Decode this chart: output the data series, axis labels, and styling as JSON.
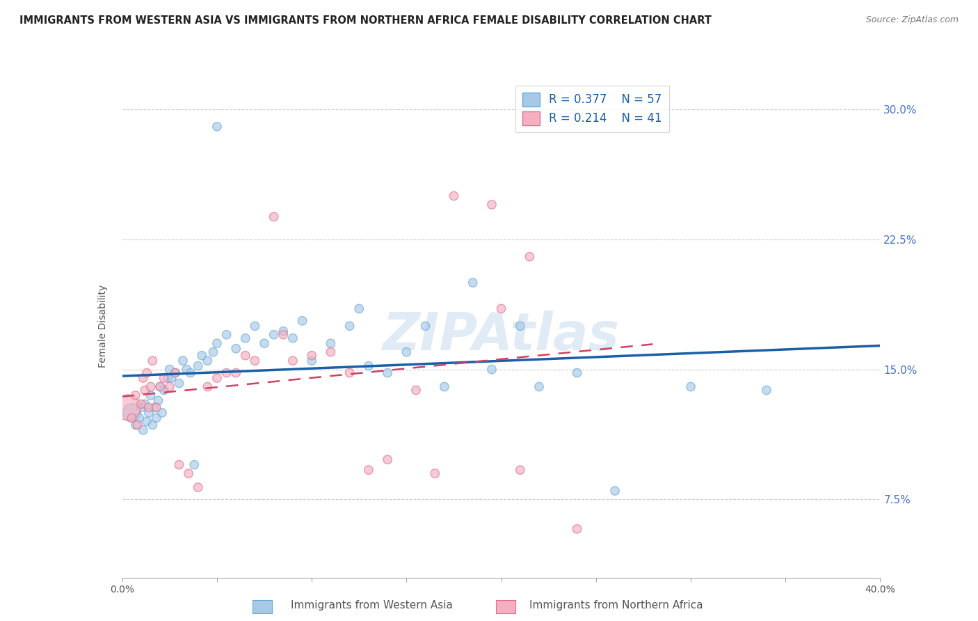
{
  "title": "IMMIGRANTS FROM WESTERN ASIA VS IMMIGRANTS FROM NORTHERN AFRICA FEMALE DISABILITY CORRELATION CHART",
  "source": "Source: ZipAtlas.com",
  "ylabel": "Female Disability",
  "watermark": "ZIPAtlas",
  "blue_R": 0.377,
  "blue_N": 57,
  "pink_R": 0.214,
  "pink_N": 41,
  "xlim": [
    0,
    0.4
  ],
  "ylim": [
    0.03,
    0.32
  ],
  "yticks": [
    0.075,
    0.15,
    0.225,
    0.3
  ],
  "ytick_labels": [
    "7.5%",
    "15.0%",
    "22.5%",
    "30.0%"
  ],
  "blue_color": "#a8c8e8",
  "blue_edge_color": "#6aaad4",
  "blue_line_color": "#1a5fa8",
  "pink_color": "#f4b0c0",
  "pink_edge_color": "#e07090",
  "pink_line_color": "#d04060",
  "blue_scatter_x": [
    0.005,
    0.007,
    0.009,
    0.01,
    0.011,
    0.012,
    0.013,
    0.014,
    0.015,
    0.016,
    0.017,
    0.018,
    0.019,
    0.02,
    0.021,
    0.022,
    0.024,
    0.025,
    0.026,
    0.028,
    0.03,
    0.032,
    0.034,
    0.036,
    0.038,
    0.04,
    0.042,
    0.045,
    0.048,
    0.05,
    0.055,
    0.06,
    0.065,
    0.07,
    0.075,
    0.08,
    0.085,
    0.09,
    0.095,
    0.1,
    0.11,
    0.12,
    0.13,
    0.14,
    0.15,
    0.16,
    0.17,
    0.185,
    0.195,
    0.21,
    0.22,
    0.24,
    0.26,
    0.3,
    0.34,
    0.125,
    0.05
  ],
  "blue_scatter_y": [
    0.125,
    0.118,
    0.122,
    0.128,
    0.115,
    0.13,
    0.12,
    0.125,
    0.135,
    0.118,
    0.128,
    0.122,
    0.132,
    0.14,
    0.125,
    0.138,
    0.145,
    0.15,
    0.145,
    0.148,
    0.142,
    0.155,
    0.15,
    0.148,
    0.095,
    0.152,
    0.158,
    0.155,
    0.16,
    0.165,
    0.17,
    0.162,
    0.168,
    0.175,
    0.165,
    0.17,
    0.172,
    0.168,
    0.178,
    0.155,
    0.165,
    0.175,
    0.152,
    0.148,
    0.16,
    0.175,
    0.14,
    0.2,
    0.15,
    0.175,
    0.14,
    0.148,
    0.08,
    0.14,
    0.138,
    0.185,
    0.29
  ],
  "blue_scatter_size": [
    350,
    80,
    80,
    80,
    80,
    80,
    80,
    80,
    80,
    80,
    80,
    80,
    80,
    80,
    80,
    80,
    80,
    80,
    80,
    80,
    80,
    80,
    80,
    80,
    80,
    80,
    80,
    80,
    80,
    80,
    80,
    80,
    80,
    80,
    80,
    80,
    80,
    80,
    80,
    80,
    80,
    80,
    80,
    80,
    80,
    80,
    80,
    80,
    80,
    80,
    80,
    80,
    80,
    80,
    80,
    80,
    80
  ],
  "pink_scatter_x": [
    0.003,
    0.005,
    0.007,
    0.008,
    0.01,
    0.011,
    0.012,
    0.013,
    0.014,
    0.015,
    0.016,
    0.018,
    0.02,
    0.022,
    0.025,
    0.028,
    0.03,
    0.035,
    0.04,
    0.045,
    0.05,
    0.055,
    0.06,
    0.065,
    0.07,
    0.08,
    0.085,
    0.09,
    0.1,
    0.11,
    0.12,
    0.13,
    0.14,
    0.155,
    0.165,
    0.175,
    0.195,
    0.215,
    0.24,
    0.2,
    0.21
  ],
  "pink_scatter_y": [
    0.128,
    0.122,
    0.135,
    0.118,
    0.13,
    0.145,
    0.138,
    0.148,
    0.128,
    0.14,
    0.155,
    0.128,
    0.14,
    0.145,
    0.14,
    0.148,
    0.095,
    0.09,
    0.082,
    0.14,
    0.145,
    0.148,
    0.148,
    0.158,
    0.155,
    0.238,
    0.17,
    0.155,
    0.158,
    0.16,
    0.148,
    0.092,
    0.098,
    0.138,
    0.09,
    0.25,
    0.245,
    0.215,
    0.058,
    0.185,
    0.092
  ],
  "pink_scatter_size": [
    700,
    80,
    80,
    80,
    80,
    80,
    80,
    80,
    80,
    80,
    80,
    80,
    80,
    80,
    80,
    80,
    80,
    80,
    80,
    80,
    80,
    80,
    80,
    80,
    80,
    80,
    80,
    80,
    80,
    80,
    80,
    80,
    80,
    80,
    80,
    80,
    80,
    80,
    80,
    80,
    80
  ],
  "legend_text_1": "R = 0.377    N = 57",
  "legend_text_2": "R = 0.214    N = 41",
  "bottom_label_blue": "Immigrants from Western Asia",
  "bottom_label_pink": "Immigrants from Northern Africa"
}
